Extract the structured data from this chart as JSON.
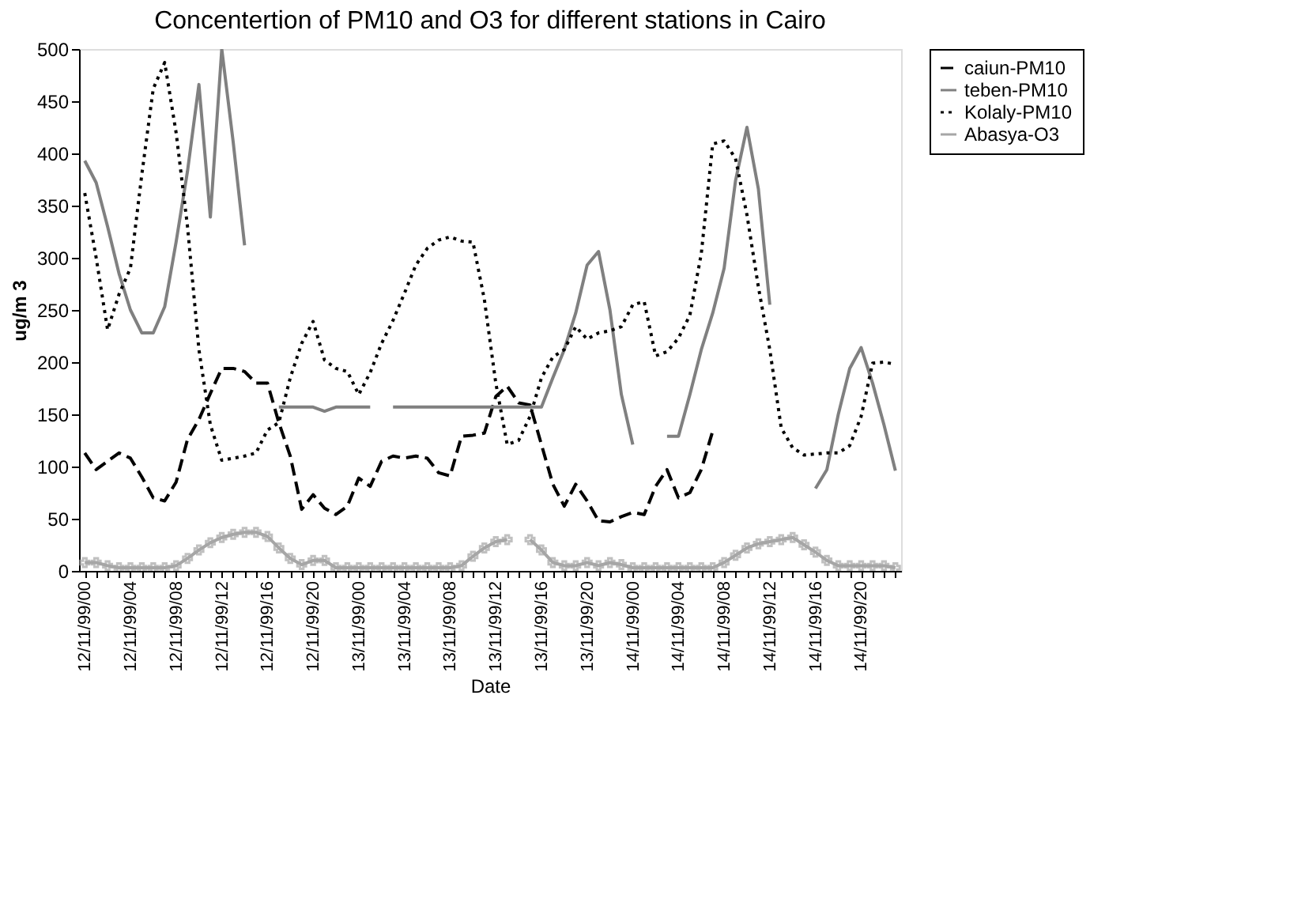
{
  "chart_data": {
    "type": "line",
    "title": "Concentertion of PM10 and O3 for different stations in Cairo",
    "xlabel": "Date",
    "ylabel": "ug/m 3",
    "categories": [
      "12/11/99/00",
      null,
      null,
      null,
      "12/11/99/04",
      null,
      null,
      null,
      "12/11/99/08",
      null,
      null,
      null,
      "12/11/99/12",
      null,
      null,
      null,
      "12/11/99/16",
      null,
      null,
      null,
      "12/11/99/20",
      null,
      null,
      null,
      "13/11/99/00",
      null,
      null,
      null,
      "13/11/99/04",
      null,
      null,
      null,
      "13/11/99/08",
      null,
      null,
      null,
      "13/11/99/12",
      null,
      null,
      null,
      "13/11/99/16",
      null,
      null,
      null,
      "13/11/99/20",
      null,
      null,
      null,
      "14/11/99/00",
      null,
      null,
      null,
      "14/11/99/04",
      null,
      null,
      null,
      "14/11/99/08",
      null,
      null,
      null,
      "14/11/99/12",
      null,
      null,
      null,
      "14/11/99/16",
      null,
      null,
      null,
      "14/11/99/20",
      null,
      null,
      null
    ],
    "ylim": [
      0,
      500
    ],
    "yticks": [
      0,
      50,
      100,
      150,
      200,
      250,
      300,
      350,
      400,
      450,
      500
    ],
    "grid": false,
    "legend": "right",
    "series": [
      {
        "name": "caiun-PM10",
        "color": "#000000",
        "line_style": "dashed",
        "marker": "none",
        "values": [
          113,
          97,
          105,
          113,
          108,
          90,
          70,
          67,
          85,
          126,
          145,
          170,
          194,
          194,
          191,
          180,
          180,
          142,
          110,
          59,
          73,
          60,
          54,
          62,
          89,
          81,
          105,
          110,
          108,
          110,
          108,
          94,
          91,
          129,
          130,
          132,
          167,
          177,
          161,
          159,
          121,
          83,
          62,
          83,
          67,
          48,
          47,
          52,
          56,
          54,
          81,
          97,
          70,
          75,
          97,
          134,
          null,
          null,
          null,
          null,
          null,
          null,
          null,
          null,
          null,
          null,
          null,
          null,
          null,
          null,
          null,
          null
        ]
      },
      {
        "name": "teben-PM10",
        "color": "#808080",
        "line_style": "solid",
        "marker": "none",
        "values": [
          393,
          372,
          330,
          285,
          250,
          228,
          228,
          253,
          315,
          383,
          466,
          339,
          500,
          411,
          312,
          null,
          null,
          157,
          157,
          157,
          157,
          153,
          157,
          157,
          157,
          157,
          null,
          157,
          157,
          157,
          157,
          157,
          157,
          157,
          157,
          157,
          157,
          157,
          157,
          157,
          157,
          185,
          212,
          247,
          293,
          306,
          250,
          169,
          121,
          null,
          null,
          129,
          129,
          169,
          212,
          247,
          290,
          374,
          425,
          366,
          255,
          null,
          null,
          null,
          79,
          97,
          150,
          194,
          214,
          180,
          140,
          96
        ]
      },
      {
        "name": "Kolaly-PM10",
        "color": "#000000",
        "line_style": "dotted",
        "marker": "none",
        "values": [
          362,
          300,
          231,
          265,
          290,
          380,
          462,
          487,
          420,
          330,
          212,
          140,
          106,
          108,
          110,
          113,
          135,
          142,
          185,
          218,
          239,
          202,
          194,
          191,
          169,
          190,
          218,
          240,
          266,
          293,
          309,
          317,
          320,
          316,
          315,
          260,
          180,
          121,
          125,
          148,
          185,
          205,
          212,
          234,
          222,
          228,
          230,
          234,
          255,
          258,
          206,
          210,
          223,
          245,
          304,
          409,
          412,
          395,
          341,
          272,
          212,
          137,
          118,
          111,
          112,
          113,
          113,
          120,
          148,
          199,
          200,
          198
        ]
      },
      {
        "name": "Abasya-O3",
        "color": "#a6a6a6",
        "line_style": "solid",
        "marker": "cross",
        "values": [
          8,
          8,
          5,
          3,
          3,
          3,
          3,
          3,
          5,
          12,
          20,
          27,
          32,
          35,
          37,
          37,
          33,
          22,
          12,
          6,
          10,
          10,
          3,
          3,
          3,
          3,
          3,
          3,
          3,
          3,
          3,
          3,
          3,
          5,
          14,
          22,
          28,
          30,
          null,
          30,
          20,
          8,
          5,
          5,
          8,
          5,
          8,
          6,
          3,
          3,
          3,
          3,
          3,
          3,
          3,
          3,
          8,
          15,
          22,
          26,
          28,
          30,
          32,
          25,
          18,
          10,
          5,
          5,
          5,
          5,
          5,
          3
        ]
      }
    ]
  }
}
